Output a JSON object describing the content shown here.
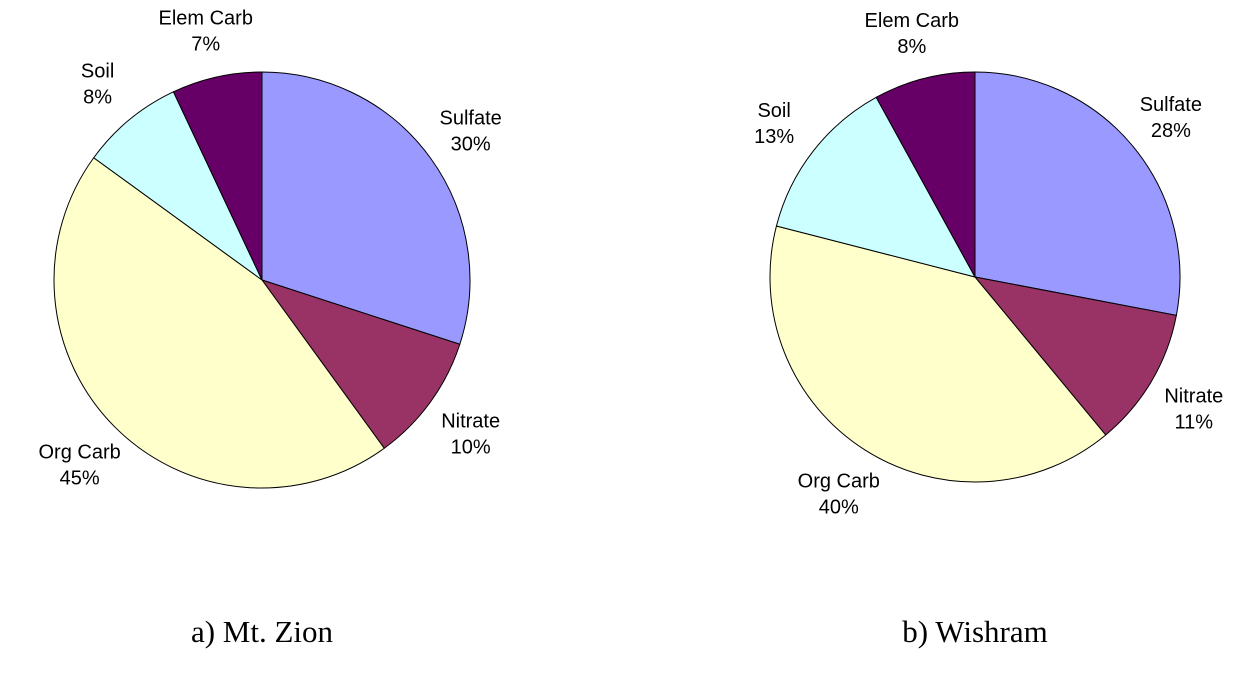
{
  "chart_data": [
    {
      "type": "pie",
      "title": "a) Mt. Zion",
      "categories": [
        "Sulfate",
        "Nitrate",
        "Org Carb",
        "Soil",
        "Elem Carb"
      ],
      "values": [
        30,
        10,
        45,
        8,
        7
      ],
      "value_labels": [
        "30%",
        "10%",
        "45%",
        "8%",
        "7%"
      ],
      "colors": [
        "#9999ff",
        "#993366",
        "#ffffcc",
        "#ccffff",
        "#660066"
      ]
    },
    {
      "type": "pie",
      "title": "b) Wishram",
      "categories": [
        "Sulfate",
        "Nitrate",
        "Org Carb",
        "Soil",
        "Elem Carb"
      ],
      "values": [
        28,
        11,
        40,
        13,
        8
      ],
      "value_labels": [
        "28%",
        "11%",
        "40%",
        "13%",
        "8%"
      ],
      "colors": [
        "#9999ff",
        "#993366",
        "#ffffcc",
        "#ccffff",
        "#660066"
      ]
    }
  ]
}
